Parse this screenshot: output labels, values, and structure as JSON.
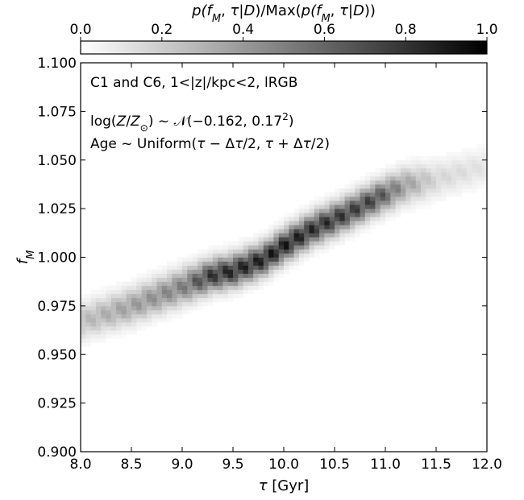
{
  "chart_data": {
    "type": "heatmap",
    "colorbar": {
      "label": "p(f_M, τ|D)/Max(p(f_M, τ|D))",
      "label_parts": [
        "p(",
        "f",
        "M",
        ", ",
        "τ",
        "|",
        "D",
        ")/Max(",
        "p(",
        "f",
        "M",
        ", ",
        "τ",
        "|",
        "D",
        "))"
      ],
      "ticks": [
        "0.0",
        "0.2",
        "0.4",
        "0.6",
        "0.8",
        "1.0"
      ],
      "tick_values": [
        0.0,
        0.2,
        0.4,
        0.6,
        0.8,
        1.0
      ],
      "range": [
        0.0,
        1.0
      ],
      "colormap": "gray_r",
      "placement": "top"
    },
    "xlabel": "τ [Gyr]",
    "xlabel_parts": [
      "τ",
      " [Gyr]"
    ],
    "ylabel": "f_M",
    "ylabel_parts": [
      "f",
      "M"
    ],
    "xlim": [
      8.0,
      12.0
    ],
    "ylim": [
      0.9,
      1.1
    ],
    "x_ticks": [
      "8.0",
      "8.5",
      "9.0",
      "9.5",
      "10.0",
      "10.5",
      "11.0",
      "11.5",
      "12.0"
    ],
    "x_tick_values": [
      8.0,
      8.5,
      9.0,
      9.5,
      10.0,
      10.5,
      11.0,
      11.5,
      12.0
    ],
    "y_ticks": [
      "0.900",
      "0.925",
      "0.950",
      "0.975",
      "1.000",
      "1.025",
      "1.050",
      "1.075",
      "1.100"
    ],
    "y_tick_values": [
      0.9,
      0.925,
      0.95,
      0.975,
      1.0,
      1.025,
      1.05,
      1.075,
      1.1
    ],
    "annotations": [
      "C1 and C6, 1<|z|/kpc<2, lRGB",
      "log(Z/Z⊙) ~ 𝒩(−0.162, 0.17²)",
      "Age ~ Uniform(τ − Δτ/2, τ + Δτ/2)"
    ],
    "annotation_parts": [
      [
        "C1 and C6, 1<|z|/kpc<2, lRGB"
      ],
      [
        "log(",
        "Z",
        "/",
        "Z",
        "⊙",
        ") ~ ",
        "𝒩",
        "(−0.162, 0.17",
        "2",
        ")"
      ],
      [
        "Age ~ Uniform(",
        "τ",
        " − Δ",
        "τ",
        "/2, ",
        "τ",
        " + Δ",
        "τ",
        "/2)"
      ]
    ],
    "grid": false,
    "ridge": {
      "description": "posterior density ridge",
      "tau": [
        8.0,
        8.5,
        9.0,
        9.3,
        9.5,
        9.8,
        10.0,
        10.3,
        10.6,
        10.9,
        11.2,
        11.5,
        12.0
      ],
      "f_M": [
        0.967,
        0.975,
        0.985,
        0.991,
        0.993,
        0.999,
        1.006,
        1.015,
        1.022,
        1.03,
        1.037,
        1.04,
        1.047
      ],
      "peak": [
        0.28,
        0.42,
        0.55,
        0.88,
        0.92,
        0.95,
        0.98,
        0.9,
        0.85,
        0.8,
        0.42,
        0.18,
        0.12
      ],
      "sigma_f": [
        0.006,
        0.006,
        0.006,
        0.0055,
        0.0055,
        0.0055,
        0.0055,
        0.0055,
        0.0055,
        0.0055,
        0.006,
        0.006,
        0.006
      ]
    }
  }
}
